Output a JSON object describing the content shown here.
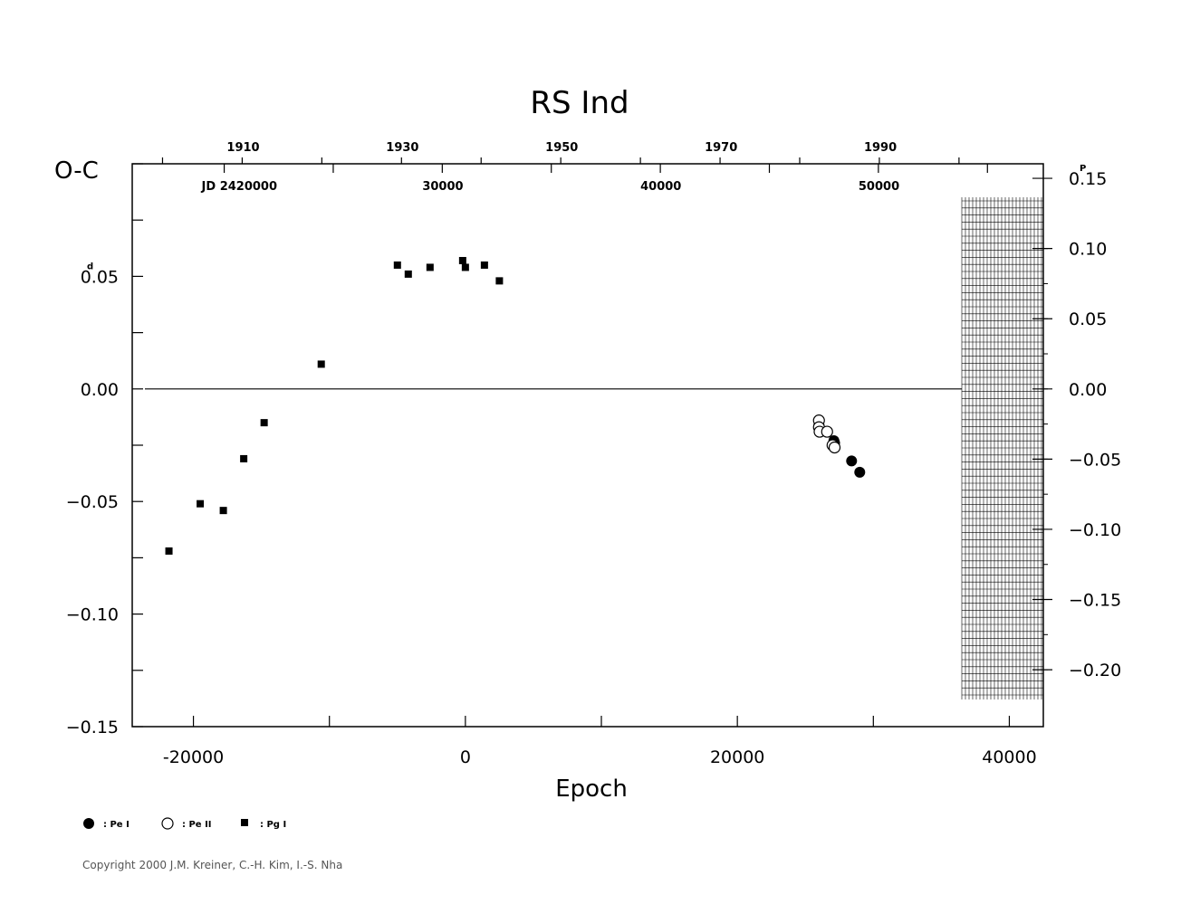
{
  "chart_data": {
    "type": "scatter",
    "title": "RS  Ind",
    "ylabel": "O-C",
    "ylabel_unit": "d",
    "xlabel": "Epoch",
    "xlim": [
      -24500,
      42500
    ],
    "ylim": [
      -0.15,
      0.1
    ],
    "x_ticks": [
      -20000,
      0,
      20000,
      40000
    ],
    "y_ticks": [
      -0.15,
      -0.1,
      -0.05,
      0.0,
      0.05
    ],
    "y_tick_labels": [
      "−0.15",
      "−0.10",
      "−0.05",
      "0.00",
      "0.05"
    ],
    "right_axis": {
      "unit": "P",
      "ticks": [
        0.15,
        0.1,
        0.05,
        0.0,
        -0.05,
        -0.1,
        -0.15,
        -0.2
      ],
      "labels": [
        "0.15",
        "0.10",
        "0.05",
        "0.00",
        "−0.05",
        "−0.10",
        "−0.15",
        "−0.20"
      ]
    },
    "top_year_axis": {
      "labels": [
        "1910",
        "1930",
        "1950",
        "1970",
        "1990"
      ],
      "years": [
        1910,
        1930,
        1950,
        1970,
        1990
      ]
    },
    "top_jd_axis": {
      "prefix_label": "JD 2420000",
      "labels": [
        "30000",
        "40000",
        "50000"
      ],
      "jd": [
        30000,
        40000,
        50000
      ]
    },
    "series": [
      {
        "name": ": Pe I",
        "marker": "filled-circle",
        "points": [
          [
            26000,
            -0.016
          ],
          [
            26050,
            -0.018
          ],
          [
            27100,
            -0.023
          ],
          [
            27150,
            -0.024
          ],
          [
            28400,
            -0.032
          ],
          [
            29000,
            -0.037
          ]
        ]
      },
      {
        "name": ": Pe II",
        "marker": "open-circle",
        "points": [
          [
            26000,
            -0.014
          ],
          [
            26000,
            -0.017
          ],
          [
            26050,
            -0.019
          ],
          [
            26600,
            -0.019
          ],
          [
            27000,
            -0.025
          ],
          [
            27150,
            -0.026
          ]
        ]
      },
      {
        "name": ": Pg I",
        "marker": "filled-square",
        "points": [
          [
            -21800,
            -0.072
          ],
          [
            -19500,
            -0.051
          ],
          [
            -17800,
            -0.054
          ],
          [
            -16300,
            -0.031
          ],
          [
            -14800,
            -0.015
          ],
          [
            -10600,
            0.011
          ],
          [
            -5000,
            0.055
          ],
          [
            -4200,
            0.051
          ],
          [
            -2600,
            0.054
          ],
          [
            -200,
            0.057
          ],
          [
            0,
            0.054
          ],
          [
            1400,
            0.055
          ],
          [
            2500,
            0.048
          ]
        ]
      }
    ]
  },
  "legend": {
    "pe1_label": ": Pe I",
    "pe2_label": ": Pe II",
    "pg1_label": ": Pg I"
  },
  "copyright": "Copyright 2000 J.M. Kreiner, C.-H. Kim, I.-S. Nha"
}
